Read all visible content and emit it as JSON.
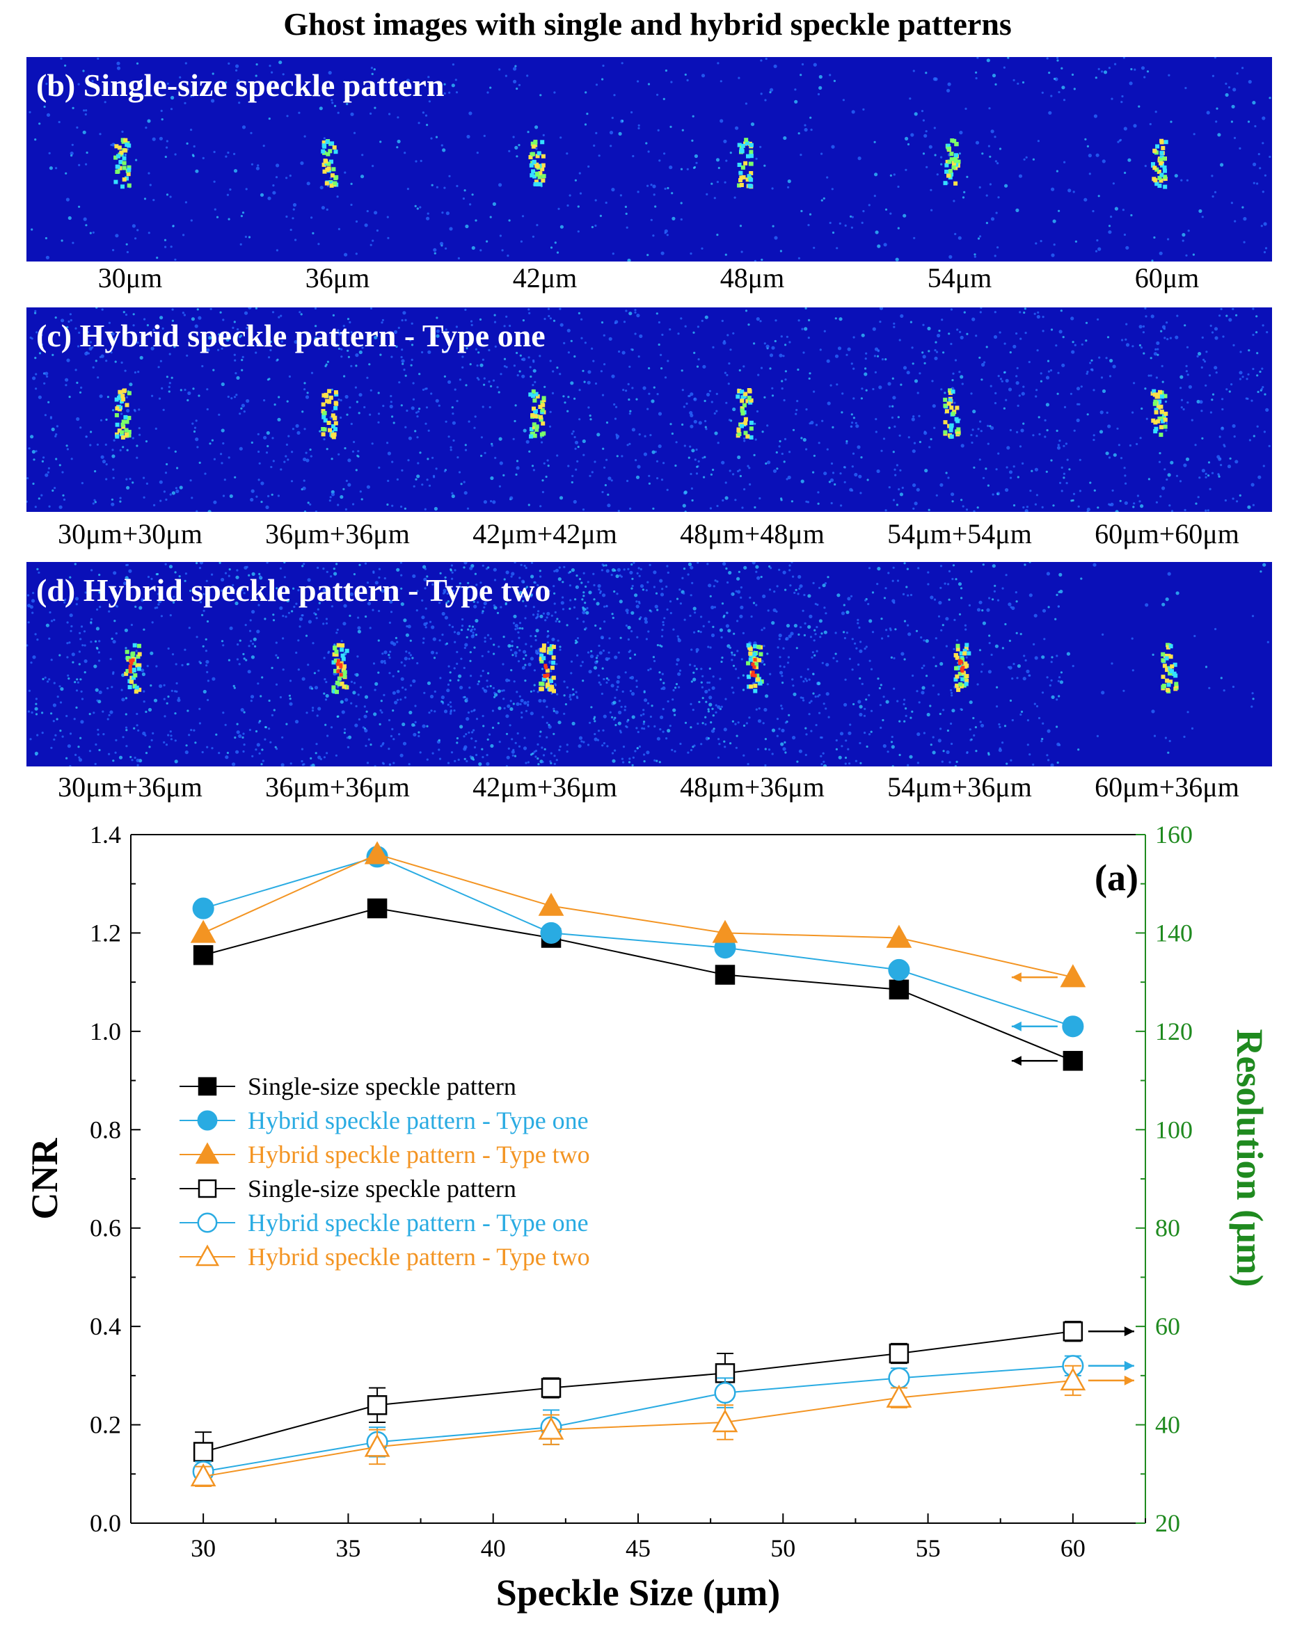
{
  "figure_title": "Ghost images with single and hybrid speckle patterns",
  "panels": [
    {
      "title": "(b) Single-size speckle pattern",
      "labels": [
        "30μm",
        "36μm",
        "42μm",
        "48μm",
        "54μm",
        "60μm"
      ]
    },
    {
      "title": "(c) Hybrid speckle pattern - Type one",
      "labels": [
        "30μm+30μm",
        "36μm+36μm",
        "42μm+42μm",
        "48μm+48μm",
        "54μm+54μm",
        "60μm+60μm"
      ]
    },
    {
      "title": "(d) Hybrid speckle pattern - Type two",
      "labels": [
        "30μm+36μm",
        "36μm+36μm",
        "42μm+36μm",
        "48μm+36μm",
        "54μm+36μm",
        "60μm+36μm"
      ]
    }
  ],
  "colors": {
    "panel_background": "#0a10b8",
    "single": "#000000",
    "type_one": "#29abe2",
    "type_two": "#f39422",
    "right_axis": "#1f8a1f"
  },
  "chart_data": {
    "type": "line",
    "panel_label": "(a)",
    "xlabel": "Speckle Size (μm)",
    "ylabel_left": "CNR",
    "ylabel_right": "Resolution (μm)",
    "xlim": [
      27.5,
      62.5
    ],
    "ylim_left": [
      0.0,
      1.4
    ],
    "ylim_right": [
      20,
      160
    ],
    "x_ticks": [
      30,
      35,
      40,
      45,
      50,
      55,
      60
    ],
    "y_ticks_left": [
      "0.0",
      "0.2",
      "0.4",
      "0.6",
      "0.8",
      "1.0",
      "1.2",
      "1.4"
    ],
    "y_ticks_right": [
      20,
      40,
      60,
      80,
      100,
      120,
      140,
      160
    ],
    "x": [
      30,
      36,
      42,
      48,
      54,
      60
    ],
    "legend_position": "center-left",
    "series": [
      {
        "name": "Single-size speckle pattern",
        "axis": "left",
        "marker": "square-filled",
        "color": "#000000",
        "values": [
          1.155,
          1.25,
          1.19,
          1.115,
          1.085,
          0.94
        ]
      },
      {
        "name": "Hybrid speckle pattern - Type one",
        "axis": "left",
        "marker": "circle-filled",
        "color": "#29abe2",
        "values": [
          1.25,
          1.355,
          1.2,
          1.17,
          1.125,
          1.01
        ]
      },
      {
        "name": "Hybrid speckle pattern - Type two",
        "axis": "left",
        "marker": "triangle-filled",
        "color": "#f39422",
        "values": [
          1.2,
          1.36,
          1.255,
          1.2,
          1.19,
          1.11
        ]
      },
      {
        "name": "Single-size speckle pattern",
        "axis": "right",
        "marker": "square-open",
        "color": "#000000",
        "values": [
          34.5,
          44,
          47.5,
          50.5,
          54.5,
          59
        ],
        "errors": [
          4,
          3.5,
          2,
          4,
          2,
          2
        ]
      },
      {
        "name": "Hybrid speckle pattern - Type one",
        "axis": "right",
        "marker": "circle-open",
        "color": "#29abe2",
        "values": [
          30.5,
          36.5,
          39.5,
          46.5,
          49.5,
          52
        ],
        "errors": [
          2,
          3,
          3.5,
          3,
          2,
          2
        ]
      },
      {
        "name": "Hybrid speckle pattern - Type two",
        "axis": "right",
        "marker": "triangle-open",
        "color": "#f39422",
        "values": [
          29.5,
          35.5,
          39,
          40.5,
          45.5,
          49
        ],
        "errors": [
          2,
          3.5,
          3,
          3.5,
          2,
          3
        ]
      }
    ]
  }
}
